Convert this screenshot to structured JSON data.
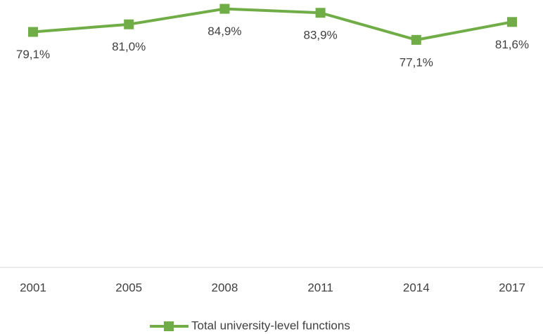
{
  "chart_data": {
    "type": "line",
    "categories": [
      "2001",
      "2005",
      "2008",
      "2011",
      "2014",
      "2017"
    ],
    "series": [
      {
        "name": "Total university-level functions",
        "color": "#70ad47",
        "values": [
          79.1,
          81.0,
          84.9,
          83.9,
          77.1,
          81.6
        ],
        "value_labels": [
          "79,1%",
          "81,0%",
          "84,9%",
          "83,9%",
          "77,1%",
          "81,6%"
        ]
      }
    ],
    "ylim": [
      20,
      85
    ],
    "legend": "bottom"
  }
}
